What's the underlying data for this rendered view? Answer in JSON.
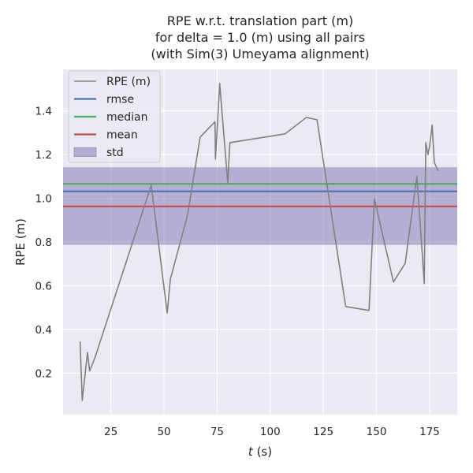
{
  "chart_data": {
    "type": "line",
    "title": [
      "RPE w.r.t. translation part (m)",
      "for delta = 1.0 (m) using all pairs",
      "(with Sim(3) Umeyama alignment)"
    ],
    "xlabel_var": "t",
    "xlabel_unit": " (s)",
    "ylabel": "RPE (m)",
    "xlim": [
      2.5,
      188
    ],
    "ylim": [
      0.01,
      1.59
    ],
    "xticks": [
      25,
      50,
      75,
      100,
      125,
      150,
      175
    ],
    "yticks": [
      0.2,
      0.4,
      0.6,
      0.8,
      1.0,
      1.2,
      1.4
    ],
    "grid": true,
    "legend_position": "top-left",
    "colors": {
      "background": "#eaeaf2",
      "grid": "#ffffff",
      "rpe": "#808080",
      "rmse": "#4c72b0",
      "median": "#55a868",
      "mean": "#c44e52",
      "std": "#8172b2"
    },
    "series": [
      {
        "name": "RPE (m)",
        "x": [
          10.5,
          11.5,
          14,
          15,
          17.5,
          44,
          51.5,
          53,
          61,
          67,
          74,
          74.2,
          76.2,
          80,
          81,
          107,
          117,
          122,
          135.5,
          146.5,
          149,
          158,
          163.5,
          169,
          172.5,
          173.2,
          174.2,
          175,
          176.2,
          177.2,
          179
        ],
        "y": [
          0.345,
          0.075,
          0.295,
          0.21,
          0.27,
          1.06,
          0.475,
          0.63,
          0.92,
          1.28,
          1.35,
          1.18,
          1.525,
          1.07,
          1.255,
          1.295,
          1.37,
          1.36,
          0.505,
          0.487,
          0.998,
          0.617,
          0.703,
          1.1,
          0.61,
          1.255,
          1.2,
          1.24,
          1.335,
          1.165,
          1.125
        ]
      }
    ],
    "stats": [
      {
        "name": "rmse",
        "value": 1.032
      },
      {
        "name": "median",
        "value": 1.066
      },
      {
        "name": "mean",
        "value": 0.963
      }
    ],
    "std": {
      "name": "std",
      "lower": 0.787,
      "upper": 1.142
    }
  }
}
